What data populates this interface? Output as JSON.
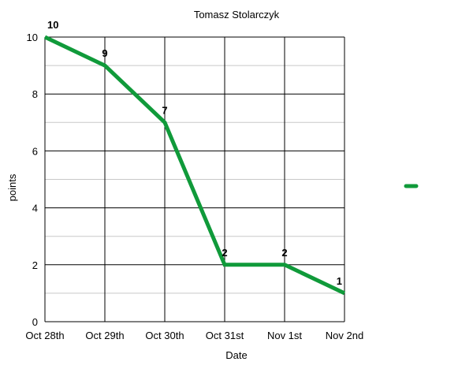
{
  "chart_data": {
    "type": "line",
    "title": "Tomasz Stolarczyk",
    "xlabel": "Date",
    "ylabel": "points",
    "categories": [
      "Oct 28th",
      "Oct 29th",
      "Oct 30th",
      "Oct 31st",
      "Nov 1st",
      "Nov 2nd"
    ],
    "series": [
      {
        "values": [
          10,
          9,
          7,
          2,
          2,
          1
        ],
        "color": "#109a3a"
      }
    ],
    "data_labels": [
      "10",
      "9",
      "7",
      "2",
      "2",
      "1"
    ],
    "ylim": [
      0,
      10
    ],
    "yticks": [
      0,
      2,
      4,
      6,
      8,
      10
    ],
    "minor_grid_step": 1,
    "grid": true,
    "legend": {
      "placement": "right",
      "entries": [
        ""
      ]
    }
  }
}
